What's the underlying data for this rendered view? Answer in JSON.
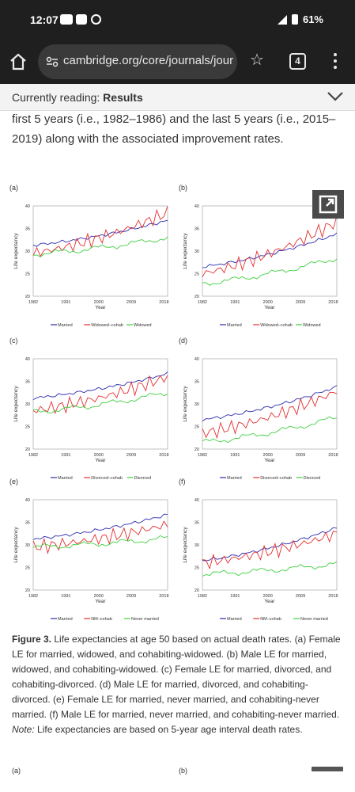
{
  "status": {
    "time": "12:07",
    "battery": "61%"
  },
  "browser": {
    "url": "cambridge.org/core/journals/jour",
    "tab_count": "4"
  },
  "reading_banner": {
    "prefix": "Currently reading: ",
    "section": "Results"
  },
  "paragraph_top": "first 5 years (i.e., 1982–1986) and the last 5 years (i.e., 2015–2019) along with the associated improvement rates.",
  "figure": {
    "panels": [
      {
        "label": "(a)",
        "ylabel": "Life expectancy",
        "xlabel": "Year",
        "yticks": [
          "40",
          "35",
          "30",
          "25",
          "20"
        ],
        "xticks": [
          "1982",
          "1991",
          "2000",
          "2009",
          "2018"
        ],
        "legend": [
          "Married",
          "Widowed–cohab",
          "Widowed"
        ]
      },
      {
        "label": "(b)",
        "ylabel": "Life expectancy",
        "xlabel": "Year",
        "yticks": [
          "40",
          "35",
          "30",
          "25",
          "20"
        ],
        "xticks": [
          "1982",
          "1991",
          "2000",
          "2009",
          "2018"
        ],
        "legend": [
          "Married",
          "Widowed–cohab",
          "Widowed"
        ]
      },
      {
        "label": "(c)",
        "ylabel": "Life expectancy",
        "xlabel": "Year",
        "yticks": [
          "40",
          "35",
          "30",
          "25",
          "20"
        ],
        "xticks": [
          "1982",
          "1991",
          "2000",
          "2009",
          "2018"
        ],
        "legend": [
          "Married",
          "Divorced–cohab",
          "Divorced"
        ]
      },
      {
        "label": "(d)",
        "ylabel": "Life expectancy",
        "xlabel": "Year",
        "yticks": [
          "40",
          "35",
          "30",
          "25",
          "20"
        ],
        "xticks": [
          "1982",
          "1991",
          "2000",
          "2009",
          "2018"
        ],
        "legend": [
          "Married",
          "Divorced–cohab",
          "Divorced"
        ]
      },
      {
        "label": "(e)",
        "ylabel": "Life expectancy",
        "xlabel": "Year",
        "yticks": [
          "40",
          "35",
          "30",
          "25",
          "20"
        ],
        "xticks": [
          "1982",
          "1991",
          "2000",
          "2009",
          "2018"
        ],
        "legend": [
          "Married",
          "NM–cohab",
          "Never married"
        ]
      },
      {
        "label": "(f)",
        "ylabel": "Life expectancy",
        "xlabel": "Year",
        "yticks": [
          "40",
          "35",
          "30",
          "25",
          "20"
        ],
        "xticks": [
          "1982",
          "1991",
          "2000",
          "2009",
          "2018"
        ],
        "legend": [
          "Married",
          "NM–cohab",
          "Never married"
        ]
      }
    ],
    "colors": {
      "married": "#2b2bb0",
      "cohab": "#e53030",
      "other": "#40d040"
    }
  },
  "chart_data": [
    {
      "type": "line",
      "x_start": 1982,
      "x_end": 2019,
      "ylim": [
        20,
        40
      ],
      "series": [
        {
          "name": "Married",
          "start": 31.3,
          "end": 36.8
        },
        {
          "name": "Widowed–cohab",
          "start": 29.5,
          "end": 38.5
        },
        {
          "name": "Widowed",
          "start": 29.3,
          "end": 33.0
        }
      ]
    },
    {
      "type": "line",
      "x_start": 1982,
      "x_end": 2019,
      "ylim": [
        20,
        40
      ],
      "series": [
        {
          "name": "Married",
          "start": 26.5,
          "end": 33.8
        },
        {
          "name": "Widowed–cohab",
          "start": 25.0,
          "end": 36.5
        },
        {
          "name": "Widowed",
          "start": 22.8,
          "end": 28.5
        }
      ]
    },
    {
      "type": "line",
      "x_start": 1982,
      "x_end": 2019,
      "ylim": [
        20,
        40
      ],
      "series": [
        {
          "name": "Married",
          "start": 31.3,
          "end": 36.7
        },
        {
          "name": "Divorced–cohab",
          "start": 28.5,
          "end": 36.0
        },
        {
          "name": "Divorced",
          "start": 28.2,
          "end": 32.5
        }
      ]
    },
    {
      "type": "line",
      "x_start": 1982,
      "x_end": 2019,
      "ylim": [
        20,
        40
      ],
      "series": [
        {
          "name": "Married",
          "start": 26.5,
          "end": 33.8
        },
        {
          "name": "Divorced–cohab",
          "start": 23.5,
          "end": 32.8
        },
        {
          "name": "Divorced",
          "start": 21.5,
          "end": 27.0
        }
      ]
    },
    {
      "type": "line",
      "x_start": 1982,
      "x_end": 2019,
      "ylim": [
        20,
        40
      ],
      "series": [
        {
          "name": "Married",
          "start": 31.3,
          "end": 36.7
        },
        {
          "name": "NM–cohab",
          "start": 29.5,
          "end": 34.5
        },
        {
          "name": "Never married",
          "start": 29.5,
          "end": 31.5
        }
      ]
    },
    {
      "type": "line",
      "x_start": 1982,
      "x_end": 2019,
      "ylim": [
        20,
        40
      ],
      "series": [
        {
          "name": "Married",
          "start": 26.5,
          "end": 33.8
        },
        {
          "name": "NM–cohab",
          "start": 26.0,
          "end": 32.5
        },
        {
          "name": "Never married",
          "start": 23.5,
          "end": 25.8
        }
      ]
    }
  ],
  "caption": {
    "head": "Figure 3.",
    "body": " Life expectancies at age 50 based on actual death rates. (a) Female LE for married, widowed, and cohabiting-widowed. (b) Male LE for married, widowed, and cohabiting-widowed. (c) Female LE for married, divorced, and cohabiting-divorced. (d) Male LE for married, divorced, and cohabiting-divorced. (e) Female LE for married, never married, and cohabiting-never married. (f) Male LE for married, never married, and cohabiting-never married. ",
    "note_label": "Note:",
    "note_text": " Life expectancies are based on 5-year age interval death rates."
  },
  "next_figure": {
    "left_label": "(a)",
    "right_label": "(b)"
  }
}
